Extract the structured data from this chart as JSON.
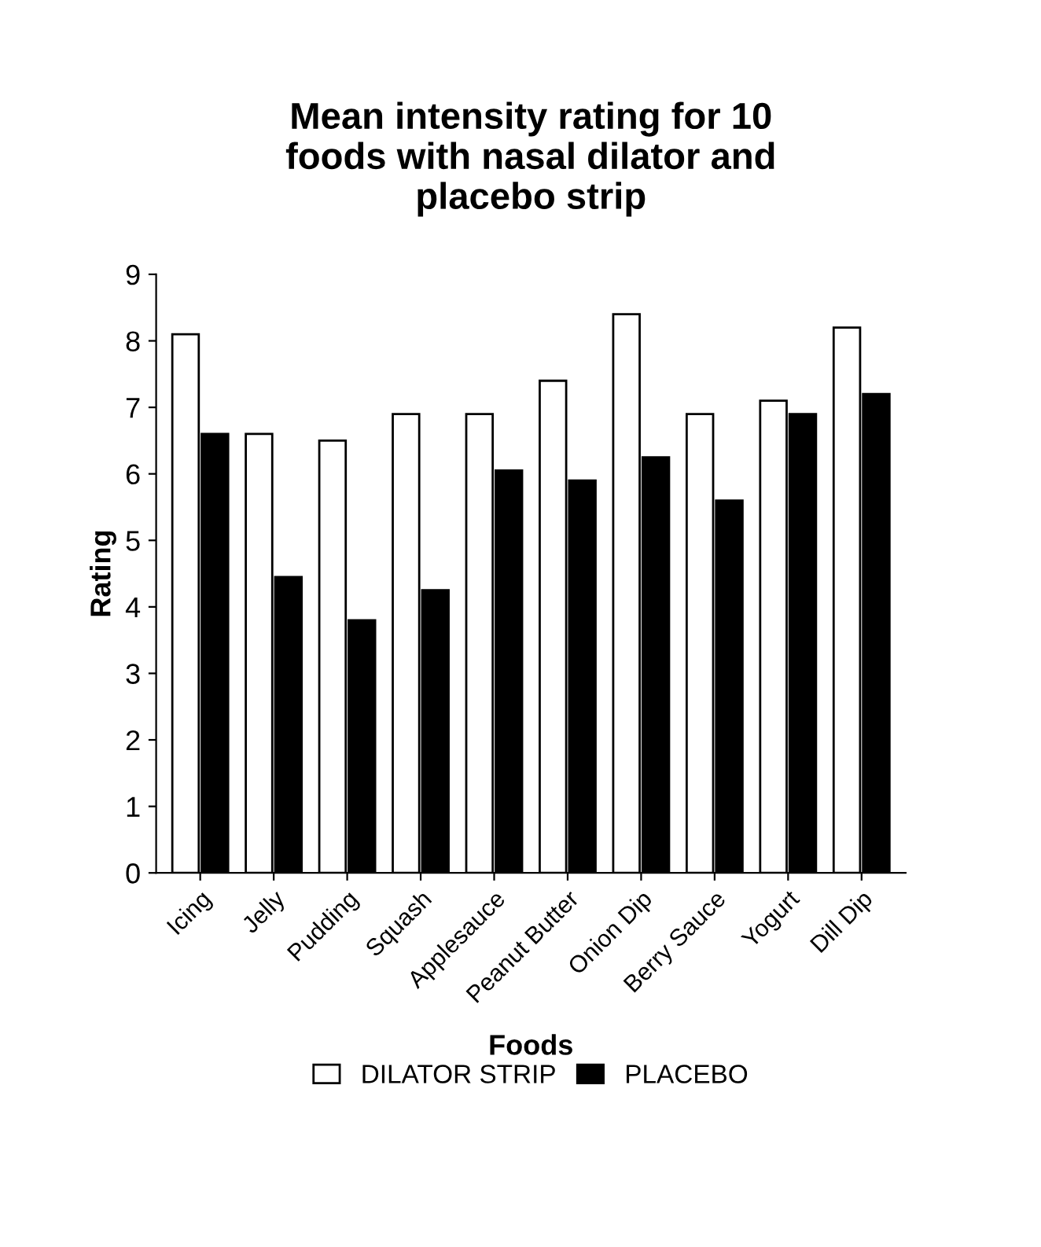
{
  "chart_data": {
    "type": "bar",
    "title": "Mean intensity rating for 10\nfoods with nasal dilator and\nplacebo strip",
    "xlabel": "Foods",
    "ylabel": "Rating",
    "categories": [
      "Icing",
      "Jelly",
      "Pudding",
      "Squash",
      "Applesauce",
      "Peanut Butter",
      "Onion Dip",
      "Berry Sauce",
      "Yogurt",
      "Dill Dip"
    ],
    "series": [
      {
        "name": "DILATOR STRIP",
        "color": "#ffffff",
        "values": [
          8.1,
          6.6,
          6.5,
          6.9,
          6.9,
          7.4,
          8.4,
          6.9,
          7.1,
          8.2
        ]
      },
      {
        "name": "PLACEBO",
        "color": "#000000",
        "values": [
          6.6,
          4.45,
          3.8,
          4.25,
          6.05,
          5.9,
          6.25,
          5.6,
          6.9,
          7.2
        ]
      }
    ],
    "ylim": [
      0,
      9
    ],
    "yticks": [
      0,
      1,
      2,
      3,
      4,
      5,
      6,
      7,
      8,
      9
    ],
    "grid": false,
    "legend": "bottom"
  }
}
